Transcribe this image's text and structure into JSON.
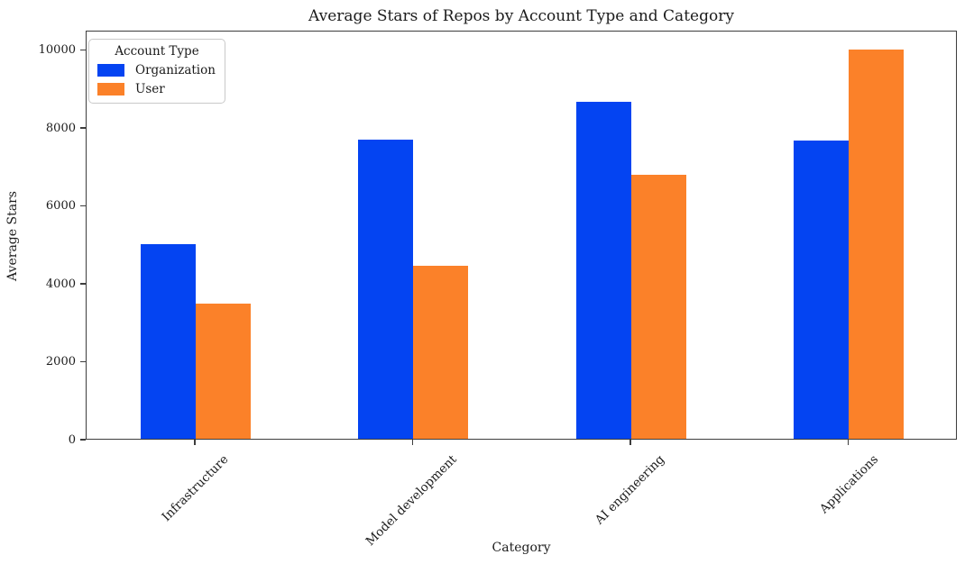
{
  "figure": {
    "background_color": "#ffffff",
    "text_color": "#1c1c1c",
    "spine_color": "#3d3d3d"
  },
  "legend": {
    "title": "Account Type",
    "entries": [
      {
        "label": "Organization",
        "color": "#0444f2"
      },
      {
        "label": "User",
        "color": "#fb8129"
      }
    ]
  },
  "chart_data": {
    "type": "bar",
    "title": "Average Stars of Repos by Account Type and Category",
    "xlabel": "Category",
    "ylabel": "Average Stars",
    "categories": [
      "Infrastructure",
      "Model development",
      "AI engineering",
      "Applications"
    ],
    "series": [
      {
        "name": "Organization",
        "color": "#0444f2",
        "values": [
          5000,
          7680,
          8650,
          7650
        ]
      },
      {
        "name": "User",
        "color": "#fb8129",
        "values": [
          3480,
          4430,
          6780,
          10000
        ]
      }
    ],
    "yticks": [
      0,
      2000,
      4000,
      6000,
      8000,
      10000
    ],
    "ytick_labels": [
      "0",
      "2000",
      "4000",
      "6000",
      "8000",
      "10000"
    ],
    "ylim": [
      0,
      10500
    ],
    "grid": false,
    "legend_title": "Account Type",
    "legend_position": "upper left",
    "x_tick_rotation_deg": 45
  }
}
